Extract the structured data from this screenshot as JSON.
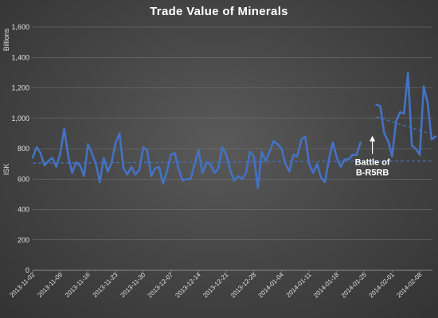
{
  "chart_data": {
    "type": "line",
    "title": "Trade Value of Minerals",
    "ylabel": "ISK",
    "yunits_label": "Billions",
    "ylim": [
      0,
      1600
    ],
    "yticks": [
      0,
      200,
      400,
      600,
      800,
      1000,
      1200,
      1400,
      1600
    ],
    "ytick_labels": [
      "0",
      "200",
      "400",
      "600",
      "800",
      "1,000",
      "1,200",
      "1,400",
      "1,600"
    ],
    "grid": true,
    "legend": "none",
    "x_start": "2013-11-02",
    "xtick_labels": [
      "2013-11-02",
      "2013-11-09",
      "2013-11-16",
      "2013-11-23",
      "2013-11-30",
      "2013-12-07",
      "2013-12-14",
      "2013-12-21",
      "2013-12-28",
      "2014-01-04",
      "2014-01-11",
      "2014-01-18",
      "2014-01-25",
      "2014-02-01",
      "2014-02-08"
    ],
    "series": [
      {
        "color": "#4472c4",
        "segments": [
          {
            "x_start": "2013-11-02",
            "values": [
              740,
              810,
              770,
              690,
              720,
              740,
              680,
              770,
              930,
              750,
              640,
              710,
              690,
              620,
              830,
              770,
              700,
              580,
              740,
              650,
              710,
              840,
              900,
              670,
              630,
              680,
              630,
              660,
              810,
              790,
              620,
              670,
              680,
              570,
              650,
              760,
              770,
              660,
              590,
              600,
              600,
              700,
              790,
              640,
              710,
              700,
              640,
              670,
              810,
              760,
              660,
              590,
              620,
              600,
              640,
              780,
              750,
              540,
              780,
              720,
              780,
              850,
              830,
              800,
              700,
              650,
              760,
              750,
              860,
              880,
              700,
              640,
              700,
              610,
              580,
              730,
              840,
              740,
              680,
              730,
              730,
              760,
              760,
              840
            ]
          },
          {
            "x_start": "2014-01-28",
            "values": [
              1090,
              1080,
              900,
              850,
              750,
              980,
              1040,
              1030,
              1300,
              820,
              800,
              760,
              1210,
              1100,
              860,
              880
            ]
          }
        ]
      }
    ],
    "trendlines": [
      {
        "style": "dashed",
        "x_range": [
          "2013-11-02",
          "2014-02-11"
        ],
        "y_range": [
          705,
          720
        ]
      },
      {
        "style": "dashed",
        "x_range": [
          "2014-01-28",
          "2014-02-11"
        ],
        "y_range": [
          1010,
          895
        ]
      }
    ],
    "annotations": [
      {
        "text": "Battle of\nB-R5RB",
        "x": "2014-01-27",
        "y": 880
      }
    ]
  }
}
